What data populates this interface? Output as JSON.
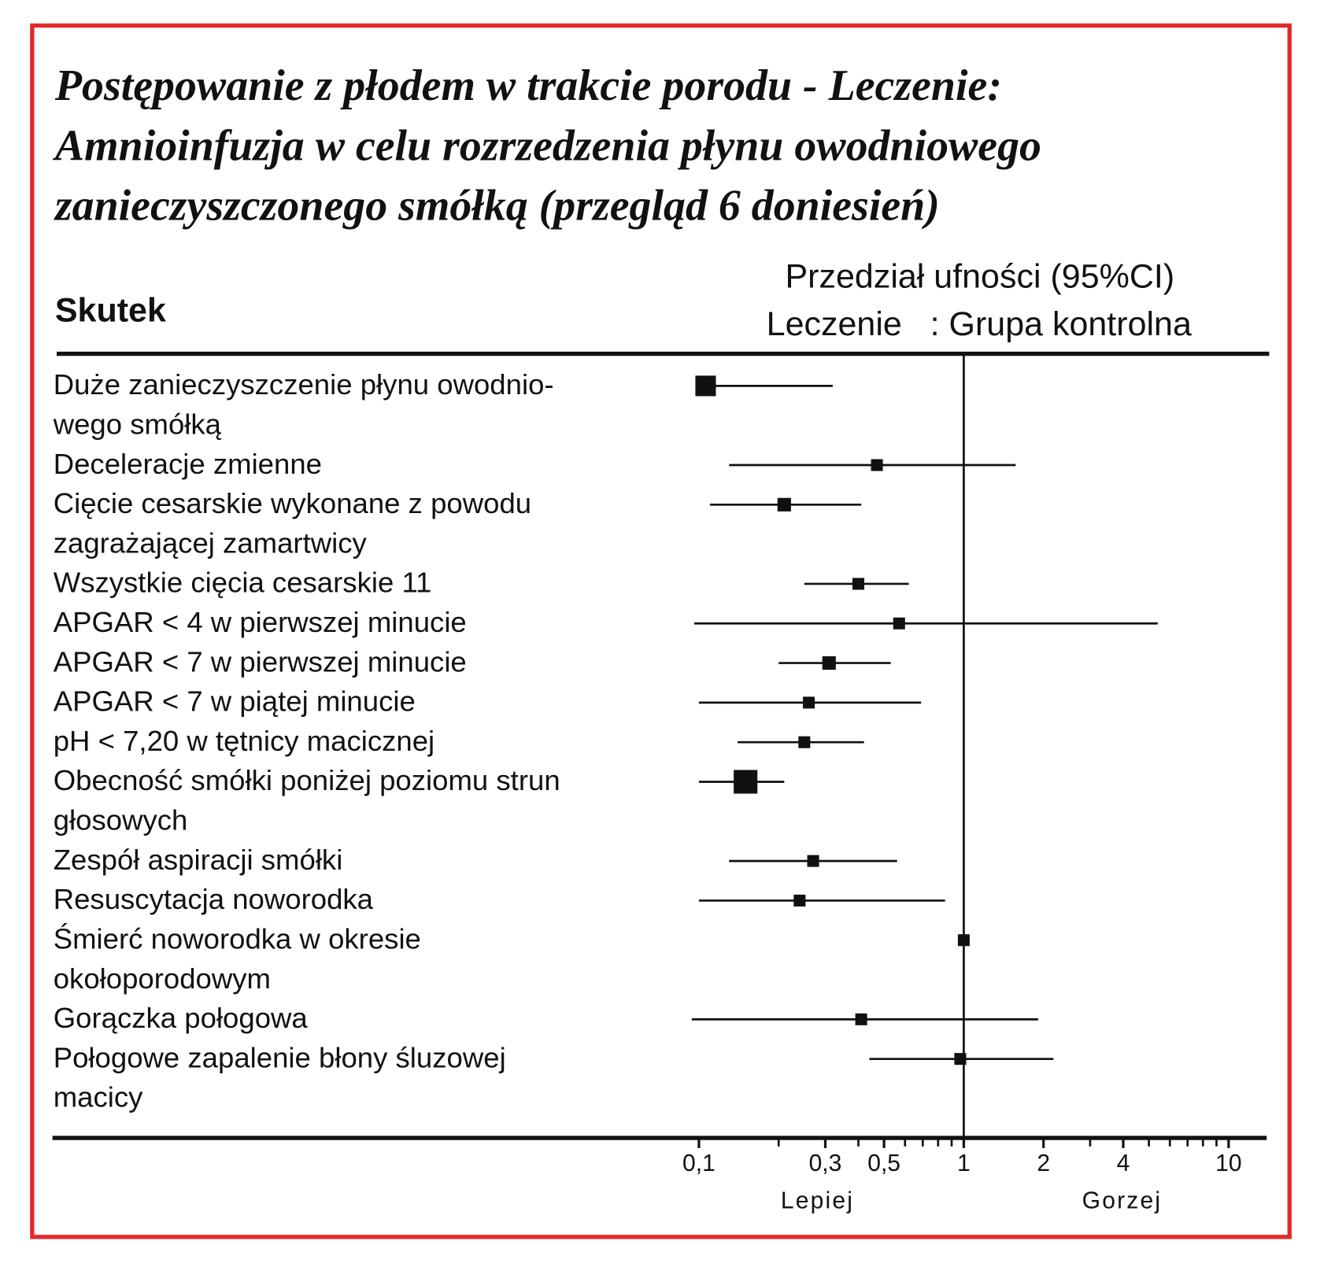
{
  "chart_data": {
    "type": "forest",
    "title_lines": [
      "Postępowanie z płodem w trakcie porodu -  Leczenie:",
      "Amnioinfuzja w celu rozrzedzenia płynu owodniowego",
      "zanieczyszczonego smółką (przegląd 6 doniesień)"
    ],
    "column_header": "Skutek",
    "ci_header": "Przedział ufności (95%CI)",
    "comparison_header": "Leczenie   : Grupa kontrolna",
    "outcomes": [
      [
        "Duże zanieczyszczenie płynu owodnio-",
        "wego smółką"
      ],
      [
        "Deceleracje zmienne"
      ],
      [
        "Cięcie cesarskie wykonane z powodu",
        "zagrażającej zamartwicy"
      ],
      [
        "Wszystkie cięcia cesarskie 11"
      ],
      [
        "APGAR < 4 w pierwszej minucie"
      ],
      [
        "APGAR < 7 w pierwszej minucie"
      ],
      [
        "APGAR < 7 w piątej minucie"
      ],
      [
        "pH < 7,20 w tętnicy macicznej"
      ],
      [
        "Obecność smółki poniżej poziomu strun",
        "głosowych"
      ],
      [
        "Zespół aspiracji smółki"
      ],
      [
        "Resuscytacja noworodka"
      ],
      [
        "Śmierć noworodka w okresie",
        "okołoporodowym"
      ],
      [
        "Gorączka połogowa"
      ],
      [
        "Połogowe zapalenie błony śluzowej",
        "macicy"
      ]
    ],
    "values": [
      0.106,
      0.47,
      0.21,
      0.4,
      0.57,
      0.31,
      0.26,
      0.25,
      0.15,
      0.27,
      0.24,
      1.0,
      0.41,
      0.97
    ],
    "ci_low": [
      0.1,
      0.13,
      0.11,
      0.25,
      0.096,
      0.2,
      0.1,
      0.14,
      0.1,
      0.13,
      0.1,
      null,
      0.094,
      0.44
    ],
    "ci_high": [
      0.32,
      1.57,
      0.41,
      0.62,
      5.4,
      0.53,
      0.69,
      0.42,
      0.21,
      0.56,
      0.85,
      null,
      1.91,
      2.18
    ],
    "weights": [
      3,
      1,
      1.3,
      1,
      1,
      1.3,
      1,
      1,
      4,
      1,
      1,
      1,
      1,
      1
    ],
    "color": "#111111",
    "border_color": "#e32a2a",
    "log_x": true,
    "reference": 1,
    "xlim": [
      0.1,
      10
    ],
    "xticks": [
      {
        "value": 0.1,
        "label": "0,1"
      },
      {
        "value": 0.3,
        "label": "0,3"
      },
      {
        "value": 0.5,
        "label": "0,5"
      },
      1,
      2,
      4,
      10
    ],
    "xminorticks": [
      0.2,
      0.4,
      0.6,
      0.7,
      0.8,
      0.9,
      3,
      5,
      6,
      7,
      8,
      9
    ],
    "left_label": "Lepiej",
    "right_label": "Gorzej"
  }
}
